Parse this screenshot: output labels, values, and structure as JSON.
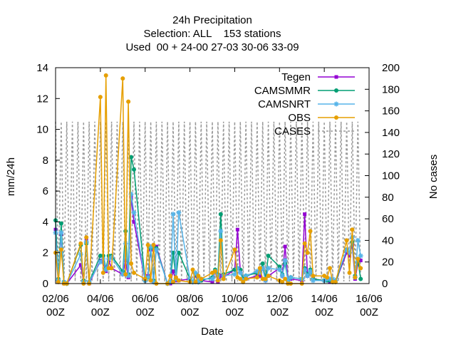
{
  "chart_data": {
    "type": "line",
    "title_lines": [
      "24h Precipitation",
      "Selection: ALL    153 stations",
      "Used  00 + 24-00 27-03 30-06 33-09"
    ],
    "xlabel": "Date",
    "ylabel": "mm/24h",
    "y2label": "No cases",
    "xlim": [
      0,
      14
    ],
    "ylim": [
      0,
      14
    ],
    "y2lim": [
      0,
      200
    ],
    "x_ticks": [
      {
        "x": 0,
        "line1": "02/06",
        "line2": "00Z"
      },
      {
        "x": 2,
        "line1": "04/06",
        "line2": "00Z"
      },
      {
        "x": 4,
        "line1": "06/06",
        "line2": "00Z"
      },
      {
        "x": 6,
        "line1": "08/06",
        "line2": "00Z"
      },
      {
        "x": 8,
        "line1": "10/06",
        "line2": "00Z"
      },
      {
        "x": 10,
        "line1": "12/06",
        "line2": "00Z"
      },
      {
        "x": 12,
        "line1": "14/06",
        "line2": "00Z"
      },
      {
        "x": 14,
        "line1": "16/06",
        "line2": "00Z"
      }
    ],
    "y_ticks": [
      "0",
      "2",
      "4",
      "6",
      "8",
      "10",
      "12",
      "14"
    ],
    "y2_ticks": [
      "0",
      "20",
      "40",
      "60",
      "80",
      "100",
      "120",
      "140",
      "160",
      "180",
      "200"
    ],
    "legend_position": "top-right",
    "series": [
      {
        "name": "Tegen",
        "color": "#9400d3",
        "marker": "square",
        "x": [
          0,
          0.125,
          0.25,
          0.375,
          0.5,
          1.125,
          1.25,
          1.375,
          1.5,
          2.0,
          2.125,
          2.25,
          2.375,
          2.5,
          3.0,
          3.125,
          3.25,
          3.375,
          3.5,
          4.0,
          4.125,
          4.25,
          4.375,
          4.5,
          5.0,
          5.125,
          5.25,
          5.375,
          5.5,
          6.0,
          6.125,
          6.25,
          6.375,
          6.5,
          7.0,
          7.125,
          7.25,
          7.375,
          7.5,
          8.0,
          8.125,
          8.25,
          8.375,
          8.5,
          9.0,
          9.125,
          9.25,
          9.375,
          9.5,
          10.0,
          10.125,
          10.25,
          10.375,
          10.5,
          11.0,
          11.125,
          11.25,
          11.375,
          11.5,
          12.0,
          12.125,
          12.25,
          12.375,
          12.5,
          13.0,
          13.125,
          13.25,
          13.375,
          13.5,
          13.625
        ],
        "y": [
          3.5,
          0.1,
          3.2,
          0.0,
          0.0,
          1.2,
          0.1,
          2.8,
          0.0,
          1.5,
          1.4,
          0.8,
          1.5,
          1.0,
          0.6,
          1.5,
          0.4,
          5.6,
          4.0,
          0.2,
          0.5,
          2.2,
          0.1,
          2.4,
          0.0,
          0.0,
          0.8,
          0.2,
          0.2,
          0.3,
          0.1,
          0.5,
          0.1,
          0.2,
          0.1,
          0.8,
          0.1,
          0.5,
          0.4,
          0.9,
          3.5,
          0.8,
          0.2,
          0.3,
          0.5,
          0.5,
          1.0,
          0.2,
          0.5,
          1.0,
          0.5,
          2.4,
          0.2,
          0.3,
          0.2,
          4.5,
          0.5,
          0.8,
          0.3,
          0.2,
          0.2,
          0.1,
          0.1,
          0.1,
          2.0,
          1.8,
          2.5,
          0.3,
          1.3,
          1.5
        ]
      },
      {
        "name": "CAMSMMR",
        "color": "#009e73",
        "marker": "circle",
        "x": [
          0,
          0.125,
          0.25,
          0.375,
          0.5,
          1.125,
          1.25,
          1.375,
          1.5,
          2.0,
          2.125,
          2.25,
          2.375,
          2.5,
          3.0,
          3.125,
          3.25,
          3.375,
          3.5,
          4.0,
          4.125,
          4.25,
          4.375,
          4.5,
          5.0,
          5.125,
          5.25,
          5.375,
          5.5,
          6.0,
          6.125,
          6.25,
          6.375,
          6.5,
          7.0,
          7.125,
          7.25,
          7.375,
          7.5,
          8.0,
          8.125,
          8.25,
          8.375,
          8.5,
          9.0,
          9.125,
          9.25,
          9.375,
          9.5,
          10.0,
          10.125,
          10.25,
          10.375,
          10.5,
          11.0,
          11.125,
          11.25,
          11.375,
          11.5,
          12.0,
          12.125,
          12.25,
          12.375,
          12.5,
          13.0,
          13.125,
          13.25,
          13.375,
          13.5,
          13.625
        ],
        "y": [
          4.1,
          0.3,
          3.9,
          0.1,
          0.0,
          2.5,
          0.2,
          2.6,
          0.1,
          1.8,
          1.8,
          1.0,
          1.8,
          1.8,
          0.8,
          3.4,
          0.6,
          8.2,
          7.4,
          0.2,
          0.4,
          2.3,
          0.2,
          2.3,
          0.0,
          0.1,
          2.0,
          0.3,
          2.0,
          0.3,
          0.1,
          0.6,
          0.1,
          0.2,
          0.4,
          0.9,
          0.6,
          4.5,
          0.6,
          0.9,
          1.0,
          0.9,
          0.3,
          0.5,
          0.7,
          0.8,
          1.3,
          0.3,
          1.8,
          1.1,
          0.6,
          1.3,
          0.2,
          0.4,
          0.3,
          1.0,
          0.6,
          0.9,
          0.3,
          0.2,
          0.2,
          0.2,
          0.1,
          0.1,
          2.2,
          2.0,
          2.7,
          0.5,
          1.5,
          0.3
        ]
      },
      {
        "name": "CAMSNRT",
        "color": "#56b4e9",
        "marker": "star",
        "x": [
          0,
          0.125,
          0.25,
          0.375,
          0.5,
          1.125,
          1.25,
          1.375,
          1.5,
          2.0,
          2.125,
          2.25,
          2.375,
          2.5,
          3.0,
          3.125,
          3.25,
          3.375,
          3.5,
          4.0,
          4.125,
          4.25,
          4.375,
          4.5,
          5.0,
          5.125,
          5.25,
          5.375,
          5.5,
          6.0,
          6.125,
          6.25,
          6.375,
          6.5,
          7.0,
          7.125,
          7.25,
          7.375,
          7.5,
          8.0,
          8.125,
          8.25,
          8.375,
          8.5,
          9.0,
          9.125,
          9.25,
          9.375,
          9.5,
          10.0,
          10.125,
          10.25,
          10.375,
          10.5,
          11.0,
          11.125,
          11.25,
          11.375,
          11.5,
          12.0,
          12.125,
          12.25,
          12.375,
          12.5,
          13.0,
          13.125,
          13.25,
          13.375,
          13.5,
          13.625
        ],
        "y": [
          3.3,
          0.2,
          3.3,
          0.1,
          0.0,
          1.9,
          0.1,
          2.7,
          0.1,
          1.4,
          1.6,
          0.9,
          1.6,
          1.7,
          0.6,
          2.6,
          0.5,
          5.8,
          4.6,
          0.2,
          0.4,
          2.4,
          0.1,
          2.2,
          0.0,
          0.1,
          4.5,
          0.3,
          4.6,
          0.3,
          0.1,
          0.7,
          0.1,
          0.3,
          0.3,
          0.8,
          0.5,
          3.4,
          0.5,
          0.6,
          1.0,
          0.7,
          0.2,
          0.5,
          0.8,
          0.7,
          1.0,
          0.2,
          1.0,
          0.9,
          0.5,
          1.5,
          0.2,
          0.4,
          0.3,
          0.9,
          0.5,
          0.8,
          0.2,
          0.2,
          0.3,
          0.3,
          0.3,
          0.2,
          2.2,
          2.0,
          3.0,
          0.4,
          2.8,
          1.8
        ]
      },
      {
        "name": "OBS",
        "color": "#e69f00",
        "marker": "circle",
        "x": [
          0,
          0.125,
          0.25,
          0.375,
          0.5,
          1.125,
          1.25,
          1.375,
          1.5,
          2.0,
          2.125,
          2.25,
          2.375,
          2.5,
          3.0,
          3.125,
          3.25,
          3.375,
          3.5,
          4.0,
          4.125,
          4.25,
          4.375,
          4.5,
          5.0,
          5.125,
          5.25,
          5.375,
          5.5,
          6.0,
          6.125,
          6.25,
          6.375,
          6.5,
          7.0,
          7.125,
          7.25,
          7.375,
          7.5,
          8.0,
          8.125,
          8.25,
          8.375,
          8.5,
          9.0,
          9.125,
          9.25,
          9.375,
          9.5,
          10.0,
          10.125,
          10.25,
          10.375,
          10.5,
          11.0,
          11.125,
          11.25,
          11.375,
          11.5,
          12.0,
          12.125,
          12.25,
          12.375,
          12.5,
          13.0,
          13.125,
          13.25,
          13.375,
          13.5,
          13.625
        ],
        "y": [
          2.0,
          0.1,
          2.2,
          0.0,
          0.0,
          2.6,
          0.0,
          3.0,
          0.0,
          12.1,
          0.7,
          13.5,
          1.0,
          1.0,
          13.3,
          0.6,
          11.8,
          1.3,
          0.7,
          0.3,
          2.5,
          0.2,
          2.5,
          0.0,
          0.0,
          0.5,
          0.1,
          0.4,
          0.2,
          0.1,
          0.9,
          0.1,
          0.5,
          0.3,
          0.7,
          0.8,
          0.2,
          2.8,
          0.3,
          2.2,
          0.4,
          0.3,
          0.1,
          0.3,
          0.4,
          1.0,
          0.3,
          0.3,
          0.5,
          0.2,
          0.1,
          0.3,
          0.0,
          0.0,
          0.0,
          2.6,
          2.0,
          3.4,
          0.5,
          0.5,
          0.4,
          1.0,
          0.1,
          0.1,
          2.8,
          0.7,
          3.5,
          0.4,
          1.6,
          1.0
        ]
      },
      {
        "name": "CASES",
        "color": "#999999",
        "marker": "none",
        "dashed": true,
        "axis": "y2",
        "x": [
          0,
          0.125,
          0.25,
          0.375,
          0.5,
          0.625,
          0.75,
          0.875,
          1.0,
          1.125,
          1.25,
          1.375,
          1.5,
          1.625,
          1.75,
          1.875,
          2.0,
          2.125,
          2.25,
          2.375,
          2.5,
          2.625,
          2.75,
          2.875,
          3.0,
          3.125,
          3.25,
          3.375,
          3.5,
          3.625,
          3.75,
          3.875,
          4.0,
          4.125,
          4.25,
          4.375,
          4.5,
          4.625,
          4.75,
          4.875,
          5.0,
          5.125,
          5.25,
          5.375,
          5.5,
          5.625,
          5.75,
          5.875,
          6.0,
          6.125,
          6.25,
          6.375,
          6.5,
          6.625,
          6.75,
          6.875,
          7.0,
          7.125,
          7.25,
          7.375,
          7.5,
          7.625,
          7.75,
          7.875,
          8.0,
          8.125,
          8.25,
          8.375,
          8.5,
          8.625,
          8.75,
          8.875,
          9.0,
          9.125,
          9.25,
          9.375,
          9.5,
          9.625,
          9.75,
          9.875,
          10.0,
          10.125,
          10.25,
          10.375,
          10.5,
          10.625,
          10.75,
          10.875,
          11.0,
          11.125,
          11.25,
          11.375,
          11.5,
          11.625,
          11.75,
          11.875,
          12.0,
          12.125,
          12.25,
          12.375,
          12.5,
          12.625,
          12.75,
          12.875,
          13.0,
          13.125,
          13.25,
          13.375,
          13.5,
          13.625
        ],
        "y": [
          150,
          2,
          150,
          2,
          150,
          2,
          150,
          2,
          150,
          2,
          150,
          2,
          150,
          2,
          150,
          2,
          150,
          2,
          150,
          2,
          150,
          2,
          150,
          2,
          150,
          2,
          150,
          2,
          150,
          2,
          150,
          2,
          150,
          2,
          150,
          2,
          150,
          2,
          150,
          2,
          150,
          2,
          150,
          2,
          150,
          2,
          150,
          2,
          150,
          2,
          150,
          2,
          150,
          2,
          150,
          2,
          150,
          2,
          150,
          2,
          150,
          2,
          150,
          2,
          150,
          2,
          150,
          2,
          150,
          2,
          150,
          2,
          150,
          2,
          150,
          2,
          150,
          2,
          150,
          2,
          150,
          2,
          150,
          2,
          150,
          2,
          150,
          2,
          150,
          2,
          150,
          2,
          150,
          2,
          150,
          2,
          150,
          2,
          150,
          2,
          150,
          2,
          150,
          2,
          150,
          2,
          150,
          2,
          150,
          2
        ]
      }
    ]
  }
}
